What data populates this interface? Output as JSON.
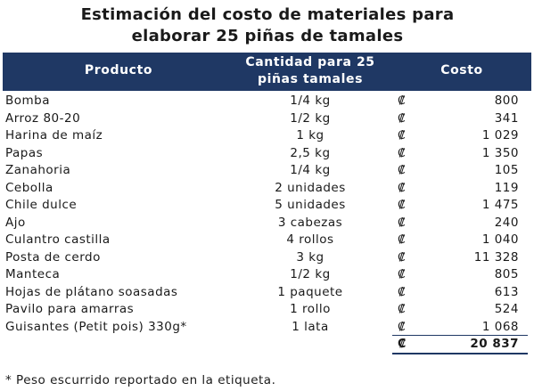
{
  "title": "Estimación del costo de materiales para elaborar 25 piñas de tamales",
  "table": {
    "header": [
      "Producto",
      "Cantidad para 25 piñas tamales",
      "Costo"
    ],
    "rows": [
      [
        "Bomba",
        "1/4 kg",
        "₡",
        "800"
      ],
      [
        "Arroz 80-20",
        "1/2 kg",
        "₡",
        "341"
      ],
      [
        "Harina de maíz",
        "1 kg",
        "₡",
        "1 029"
      ],
      [
        "Papas",
        "2,5 kg",
        "₡",
        "1 350"
      ],
      [
        "Zanahoria",
        "1/4 kg",
        "₡",
        "105"
      ],
      [
        "Cebolla",
        "2 unidades",
        "₡",
        "119"
      ],
      [
        "Chile dulce",
        "5 unidades",
        "₡",
        "1 475"
      ],
      [
        "Ajo",
        "3 cabezas",
        "₡",
        "240"
      ],
      [
        "Culantro castilla",
        "4 rollos",
        "₡",
        "1 040"
      ],
      [
        "Posta de cerdo",
        "3 kg",
        "₡",
        "11 328"
      ],
      [
        "Manteca",
        "1/2 kg",
        "₡",
        "805"
      ],
      [
        "Hojas de plátano soasadas",
        "1 paquete",
        "₡",
        "613"
      ],
      [
        "Pavilo para amarras",
        "1 rollo",
        "₡",
        "524"
      ],
      [
        "Guisantes (Petit pois) 330g*",
        "1 lata",
        "₡",
        "1 068"
      ]
    ],
    "total": {
      "currency": "₡",
      "value": "20 837"
    }
  },
  "footnote": "* Peso escurrido reportado en la etiqueta."
}
